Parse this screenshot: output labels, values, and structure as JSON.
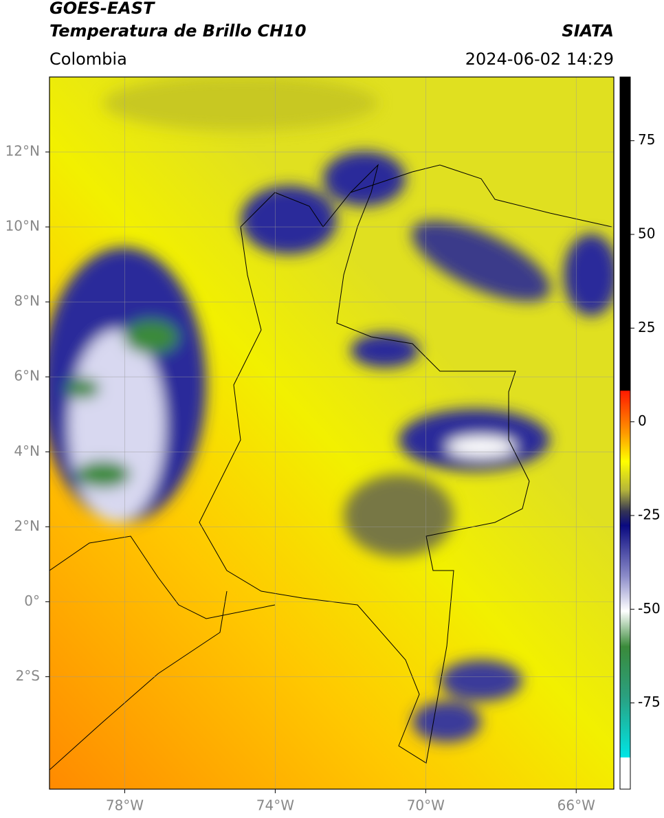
{
  "header": {
    "title": "GOES-EAST",
    "subtitle": "Temperatura de Brillo CH10",
    "source": "SIATA",
    "region": "Colombia",
    "datetime": "2024-06-02 14:29"
  },
  "map": {
    "xlim": [
      -80,
      -65
    ],
    "ylim": [
      -5,
      14
    ],
    "xticks": [
      {
        "value": -78,
        "label": "78°W"
      },
      {
        "value": -74,
        "label": "74°W"
      },
      {
        "value": -70,
        "label": "70°W"
      },
      {
        "value": -66,
        "label": "66°W"
      }
    ],
    "yticks": [
      {
        "value": 12,
        "label": "12°N"
      },
      {
        "value": 10,
        "label": "10°N"
      },
      {
        "value": 8,
        "label": "8°N"
      },
      {
        "value": 6,
        "label": "6°N"
      },
      {
        "value": 4,
        "label": "4°N"
      },
      {
        "value": 2,
        "label": "2°N"
      },
      {
        "value": 0,
        "label": "0°"
      },
      {
        "value": -2,
        "label": "2°S"
      }
    ],
    "grid": true
  },
  "colorbar": {
    "lim": [
      -98,
      92
    ],
    "ticks": [
      75,
      50,
      25,
      0,
      -25,
      -50,
      -75
    ]
  }
}
